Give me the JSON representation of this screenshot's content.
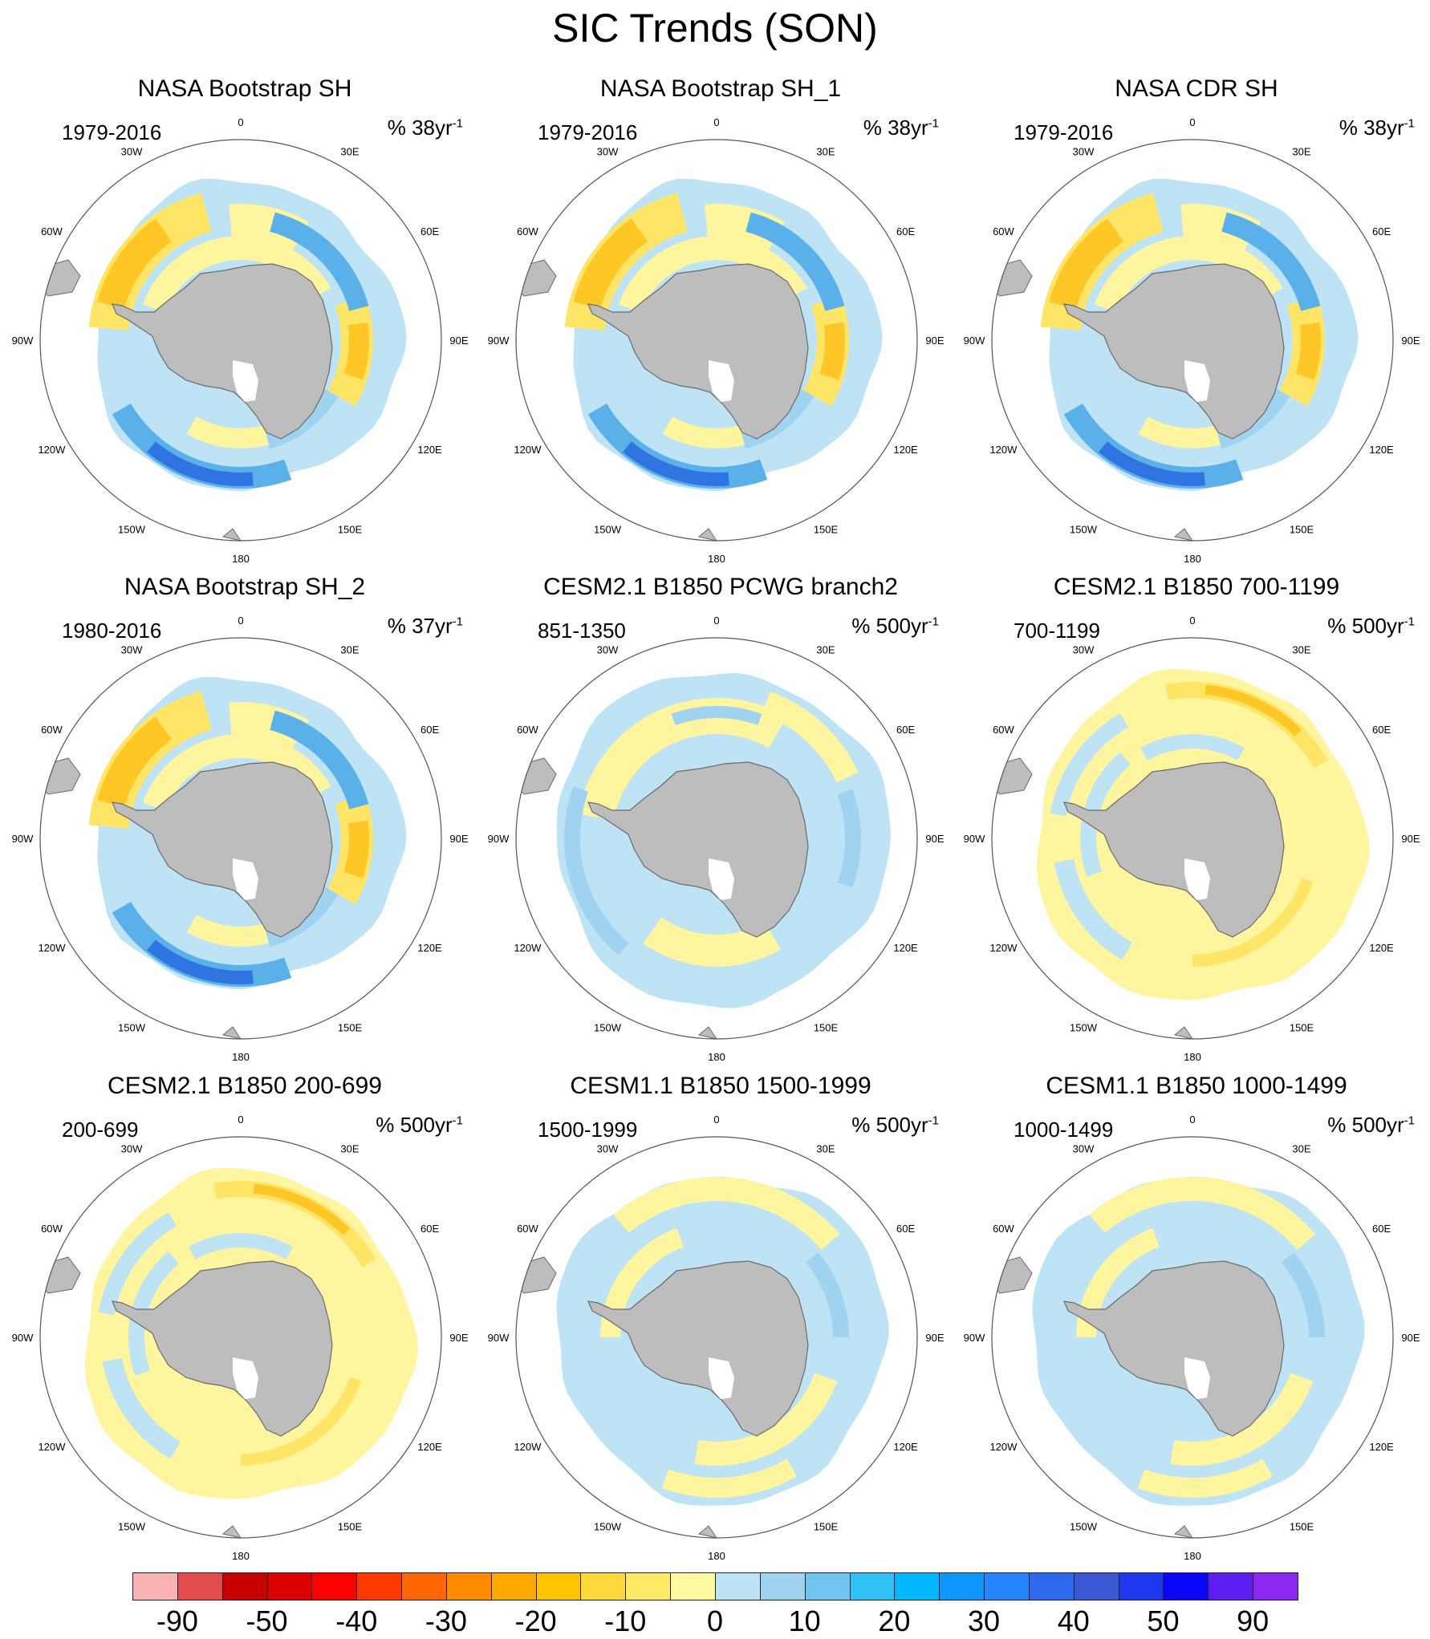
{
  "title": "SIC Trends (SON)",
  "colors": {
    "land": "#bdbdbd",
    "coast": "#6a6a6a",
    "ocean": "#ffffff",
    "yellow_light": "#fff59f",
    "yellow": "#ffe566",
    "orange": "#ffc726",
    "blue_light": "#bde3f4",
    "blue": "#9fd3ef",
    "blue_mid": "#5ab1ea",
    "blue_dark": "#2f74e0"
  },
  "longitude_labels": [
    "0",
    "30E",
    "60E",
    "90E",
    "120E",
    "150E",
    "180",
    "150W",
    "120W",
    "90W",
    "60W",
    "30W"
  ],
  "panels": [
    {
      "title": "NASA Bootstrap SH",
      "period": "1979-2016",
      "units": "% 38yr",
      "units_sup": "-1",
      "pattern": "obs"
    },
    {
      "title": "NASA Bootstrap SH_1",
      "period": "1979-2016",
      "units": "% 38yr",
      "units_sup": "-1",
      "pattern": "obs"
    },
    {
      "title": "NASA CDR SH",
      "period": "1979-2016",
      "units": "% 38yr",
      "units_sup": "-1",
      "pattern": "obs"
    },
    {
      "title": "NASA Bootstrap SH_2",
      "period": "1980-2016",
      "units": "% 37yr",
      "units_sup": "-1",
      "pattern": "obs"
    },
    {
      "title": "CESM2.1 B1850 PCWG branch2",
      "period": "851-1350",
      "units": "% 500yr",
      "units_sup": "-1",
      "pattern": "model_blue"
    },
    {
      "title": "CESM2.1 B1850 700-1199",
      "period": "700-1199",
      "units": "% 500yr",
      "units_sup": "-1",
      "pattern": "model_yellow"
    },
    {
      "title": "CESM2.1 B1850 200-699",
      "period": "200-699",
      "units": "% 500yr",
      "units_sup": "-1",
      "pattern": "model_yellow"
    },
    {
      "title": "CESM1.1 B1850 1500-1999",
      "period": "1500-1999",
      "units": "% 500yr",
      "units_sup": "-1",
      "pattern": "model_mixed"
    },
    {
      "title": "CESM1.1 B1850 1000-1499",
      "period": "1000-1499",
      "units": "% 500yr",
      "units_sup": "-1",
      "pattern": "model_mixed"
    }
  ],
  "colorbar": {
    "colors": [
      "#f9b3b5",
      "#e34c4f",
      "#c70000",
      "#dc0000",
      "#fe0000",
      "#ff3a00",
      "#ff6600",
      "#ff8a00",
      "#ffa800",
      "#ffc400",
      "#ffd93a",
      "#ffe966",
      "#fff9a0",
      "#bde3f4",
      "#9fd3ef",
      "#70c5f0",
      "#30c0f4",
      "#00b6ff",
      "#0d96ff",
      "#2585ff",
      "#2c69ec",
      "#3b57d5",
      "#1f37ee",
      "#0a05f9",
      "#5d1ef2",
      "#8b28f1"
    ],
    "labels": [
      "-90",
      "-50",
      "-40",
      "-30",
      "-20",
      "-10",
      "0",
      "10",
      "20",
      "30",
      "40",
      "50",
      "90"
    ]
  }
}
